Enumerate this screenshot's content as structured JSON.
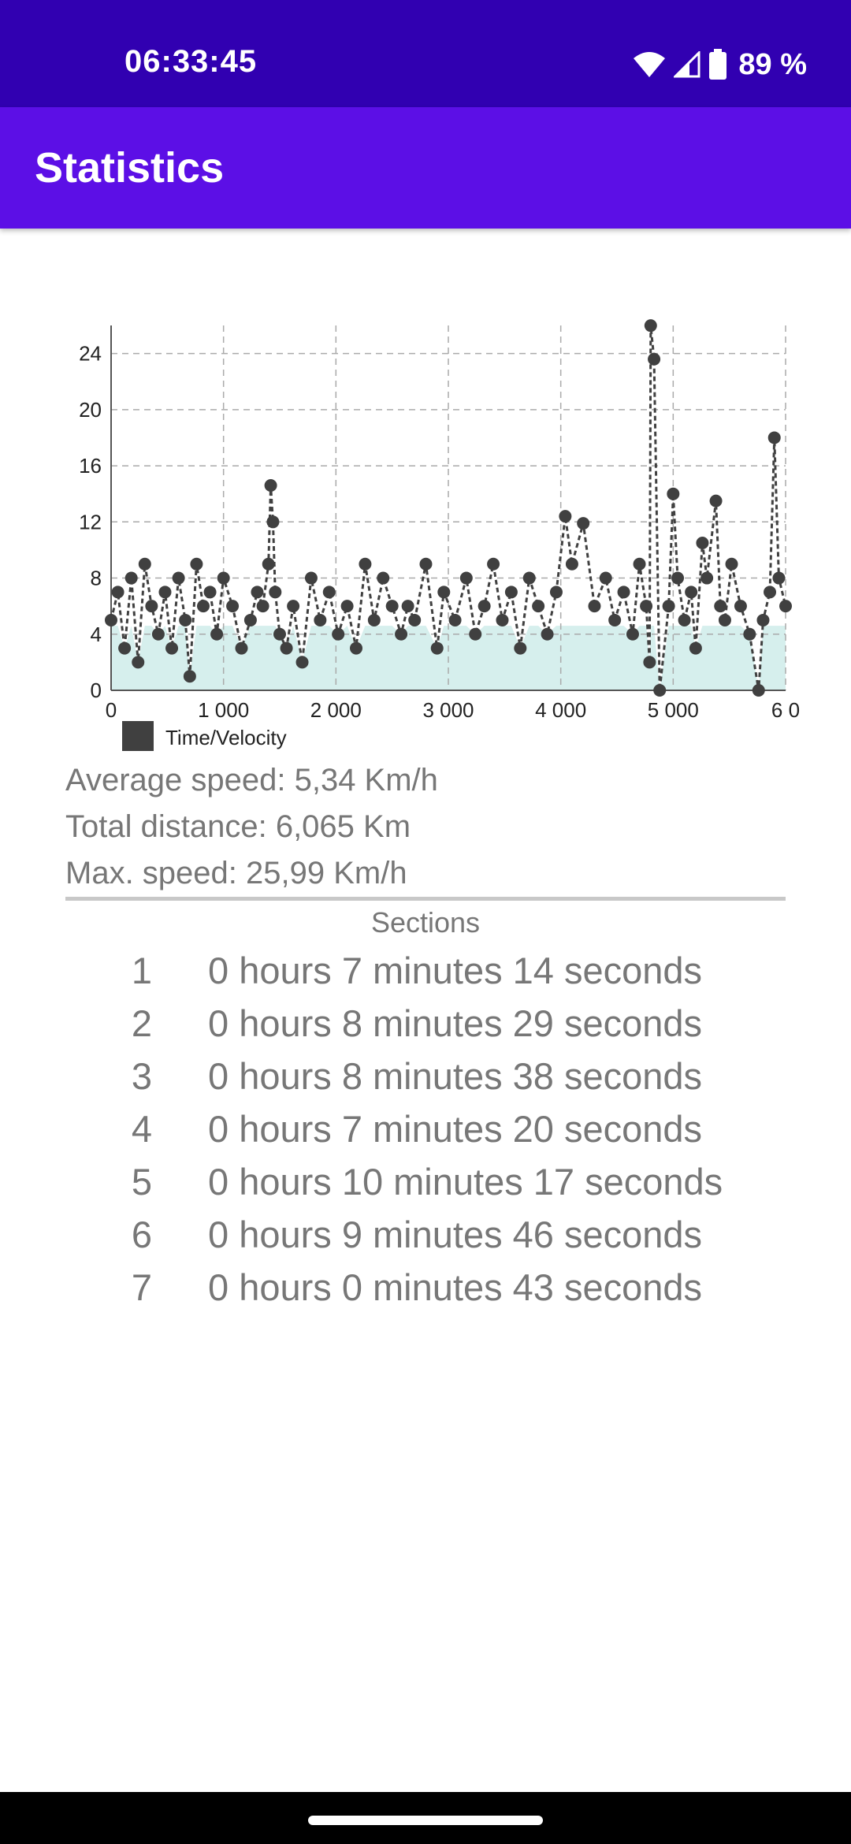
{
  "status_bar": {
    "time": "06:33:45",
    "battery": "89 %"
  },
  "app_bar": {
    "title": "Statistics"
  },
  "chart_data": {
    "type": "line",
    "title": "",
    "xlabel": "",
    "ylabel": "",
    "xlim": [
      0,
      6000
    ],
    "ylim": [
      0,
      26
    ],
    "x_ticks": [
      "0",
      "1 000",
      "2 000",
      "3 000",
      "4 000",
      "5 000",
      "6 0"
    ],
    "y_ticks": [
      "0",
      "4",
      "8",
      "12",
      "16",
      "20",
      "24"
    ],
    "grid": true,
    "legend_position": "bottom-left",
    "series": [
      {
        "name": "Time/Velocity",
        "color": "#404040",
        "fill": "#d6efed",
        "x": [
          0,
          60,
          120,
          180,
          240,
          300,
          360,
          420,
          480,
          540,
          600,
          660,
          700,
          760,
          820,
          880,
          940,
          1000,
          1080,
          1160,
          1240,
          1300,
          1350,
          1400,
          1420,
          1440,
          1460,
          1500,
          1560,
          1620,
          1700,
          1780,
          1860,
          1940,
          2020,
          2100,
          2180,
          2260,
          2340,
          2420,
          2500,
          2580,
          2640,
          2700,
          2800,
          2900,
          2960,
          3060,
          3160,
          3240,
          3320,
          3400,
          3480,
          3560,
          3640,
          3720,
          3800,
          3880,
          3960,
          4040,
          4100,
          4200,
          4300,
          4400,
          4480,
          4560,
          4640,
          4700,
          4760,
          4790,
          4800,
          4830,
          4880,
          4960,
          5000,
          5040,
          5100,
          5160,
          5200,
          5260,
          5300,
          5380,
          5420,
          5460,
          5520,
          5600,
          5680,
          5760,
          5800,
          5860,
          5900,
          5940,
          6000
        ],
        "y": [
          5,
          7,
          3,
          8,
          2,
          9,
          6,
          4,
          7,
          3,
          8,
          5,
          1,
          9,
          6,
          7,
          4,
          8,
          6,
          3,
          5,
          7,
          6,
          9,
          14.6,
          12,
          7,
          4,
          3,
          6,
          2,
          8,
          5,
          7,
          4,
          6,
          3,
          9,
          5,
          8,
          6,
          4,
          6,
          5,
          9,
          3,
          7,
          5,
          8,
          4,
          6,
          9,
          5,
          7,
          3,
          8,
          6,
          4,
          7,
          12.4,
          9,
          11.9,
          6,
          8,
          5,
          7,
          4,
          9,
          6,
          2,
          25.99,
          23.6,
          0,
          6,
          14,
          8,
          5,
          7,
          3,
          10.5,
          8,
          13.5,
          6,
          5,
          9,
          6,
          4,
          0,
          5,
          7,
          18,
          8,
          6
        ]
      }
    ]
  },
  "stats": {
    "average_speed": "Average speed: 5,34 Km/h",
    "total_distance": "Total distance: 6,065 Km",
    "max_speed": "Max. speed: 25,99 Km/h"
  },
  "sections_title": "Sections",
  "sections": [
    {
      "num": "1",
      "text": "0 hours 7 minutes 14 seconds"
    },
    {
      "num": "2",
      "text": "0 hours 8 minutes 29 seconds"
    },
    {
      "num": "3",
      "text": "0 hours 8 minutes 38 seconds"
    },
    {
      "num": "4",
      "text": "0 hours 7 minutes 20 seconds"
    },
    {
      "num": "5",
      "text": "0 hours 10 minutes 17 seconds"
    },
    {
      "num": "6",
      "text": "0 hours 9 minutes 46 seconds"
    },
    {
      "num": "7",
      "text": "0 hours 0 minutes 43 seconds"
    }
  ]
}
